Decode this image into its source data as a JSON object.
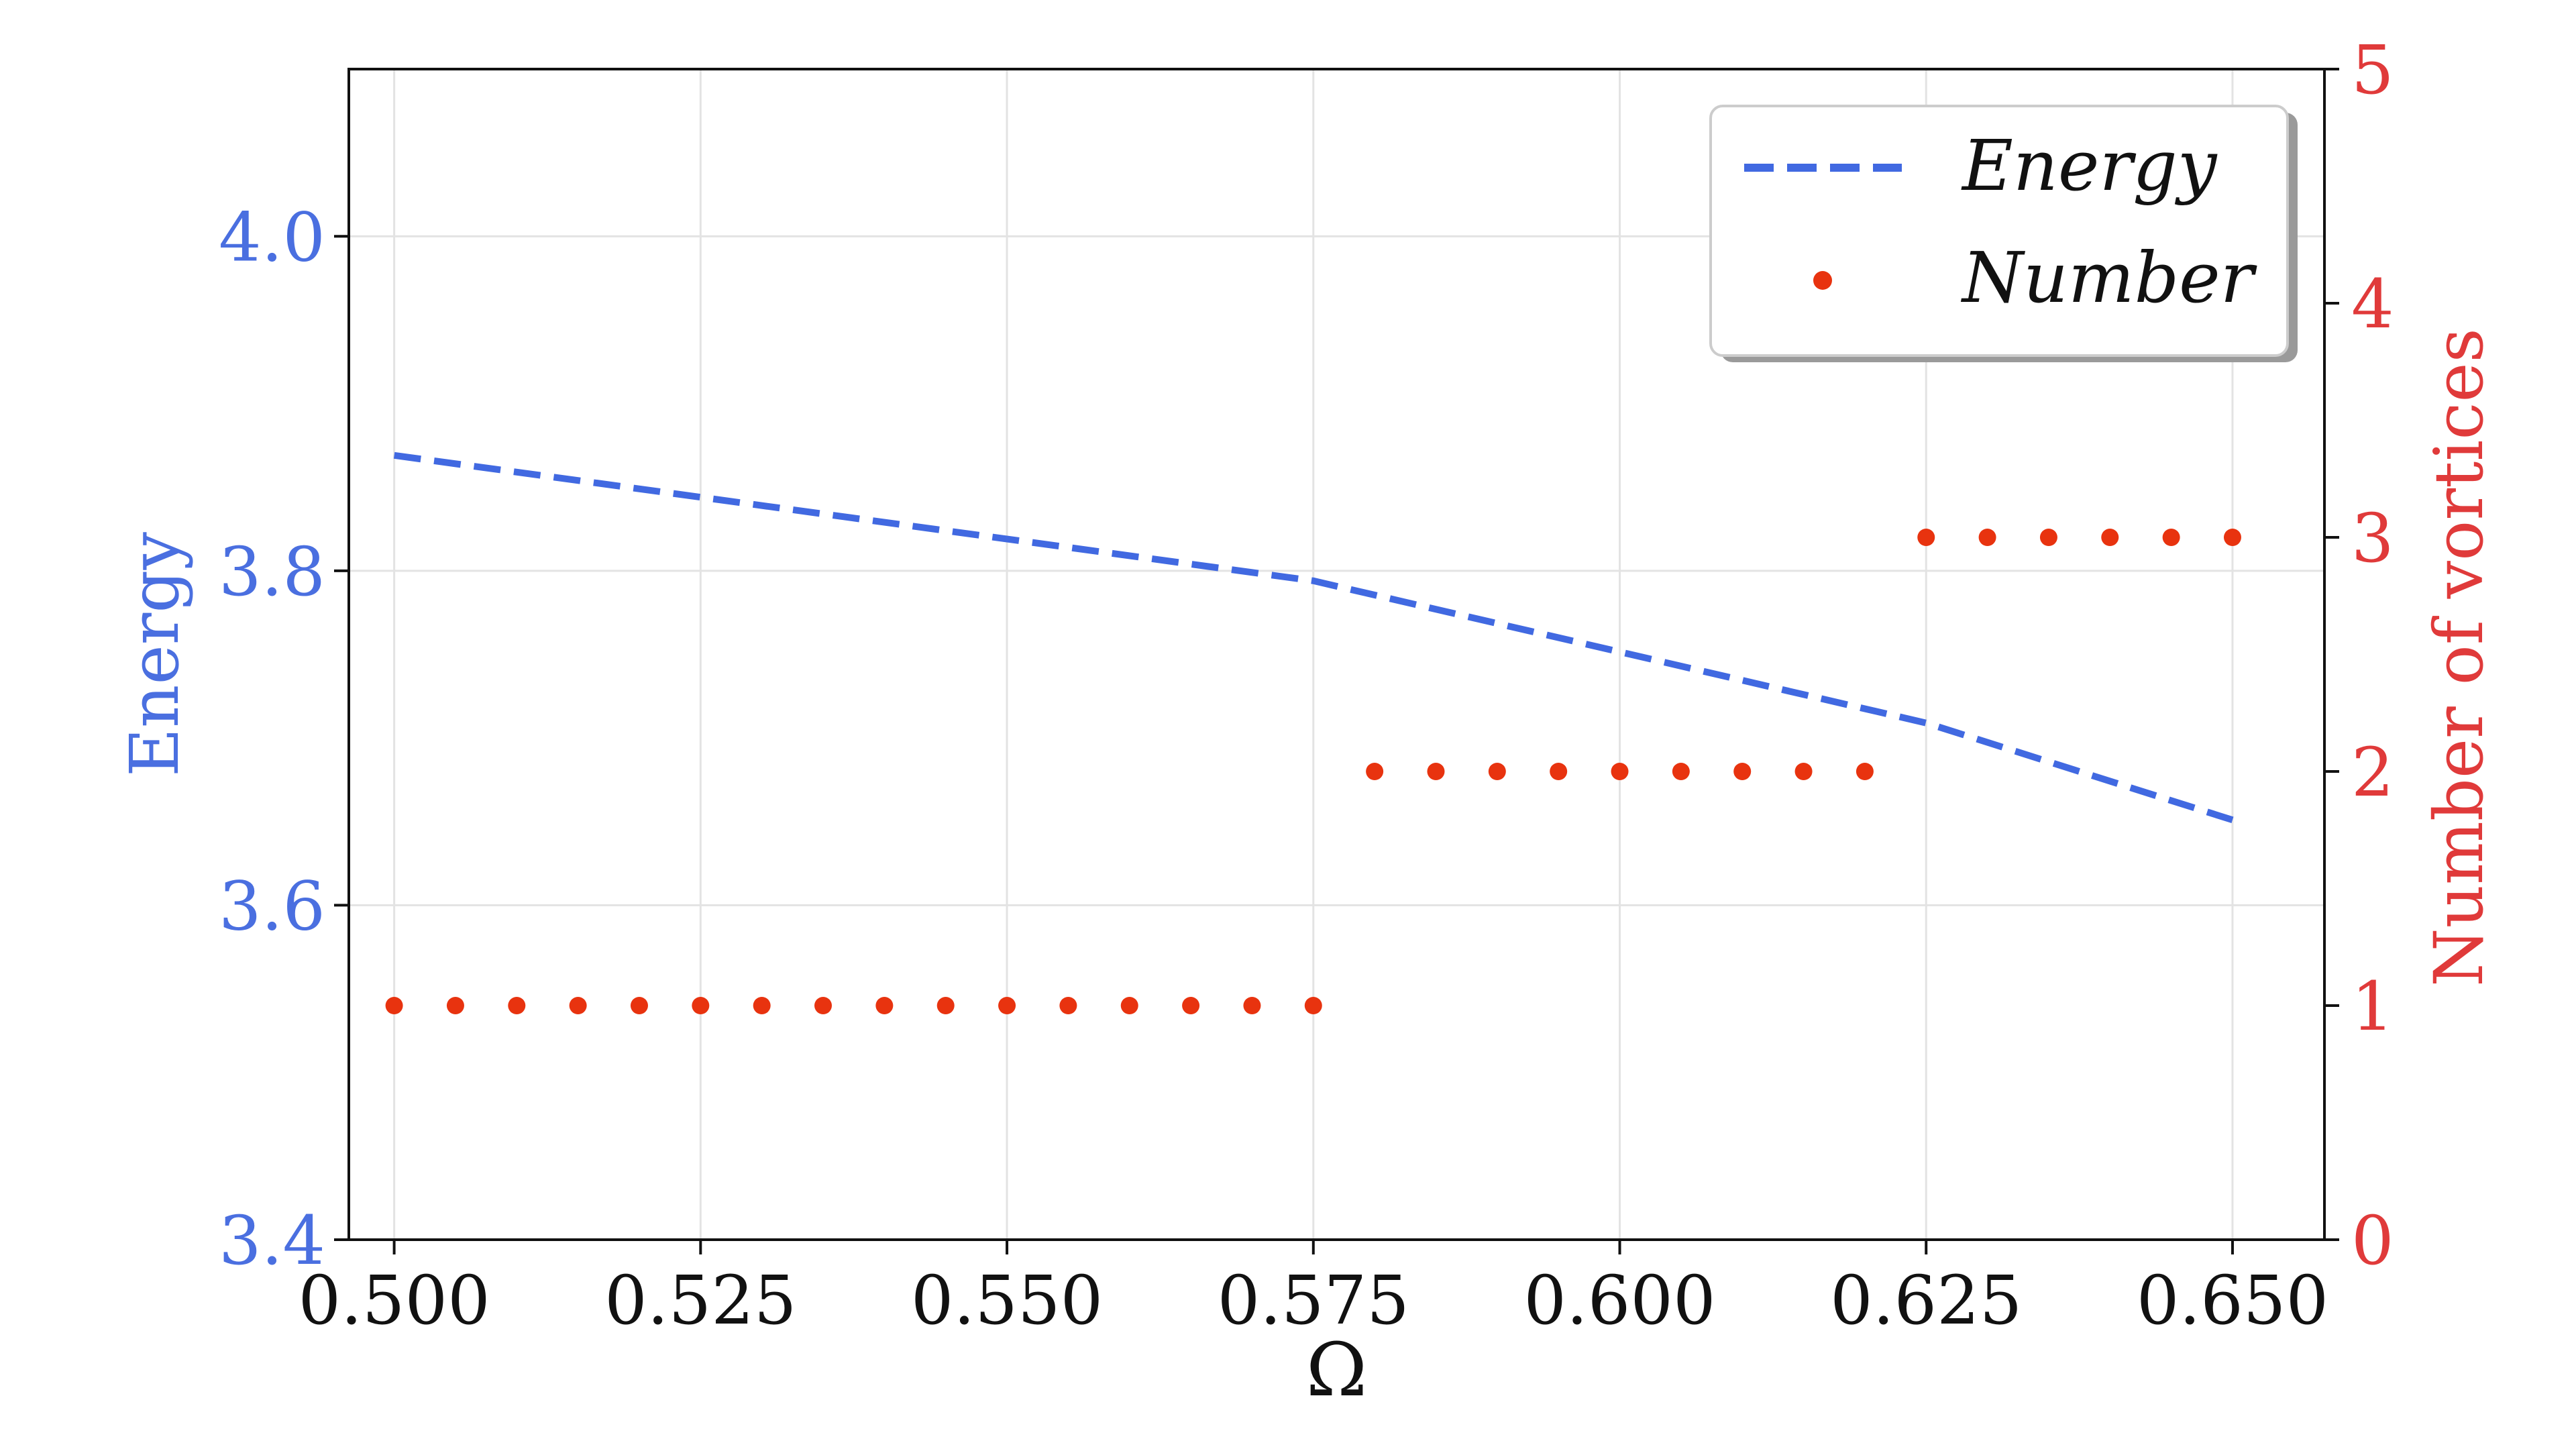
{
  "chart_data": {
    "type": "line",
    "xlabel": "Ω",
    "x_ticks": [
      "0.500",
      "0.525",
      "0.550",
      "0.575",
      "0.600",
      "0.625",
      "0.650"
    ],
    "xlim": [
      0.4963,
      0.6575
    ],
    "ylabel_left": "Energy",
    "ylim_left": [
      3.4,
      4.1
    ],
    "y_ticks_left": [
      "3.4",
      "3.6",
      "3.8",
      "4.0"
    ],
    "ylabel_right": "Number of vortices",
    "ylim_right": [
      0,
      5
    ],
    "y_ticks_right": [
      "0",
      "1",
      "2",
      "3",
      "4",
      "5"
    ],
    "grid": true,
    "legend_position": "top-right",
    "series": [
      {
        "name": "Energy",
        "axis": "left",
        "style": "dashed-line",
        "color": "#4169e1",
        "x": [
          0.5,
          0.575,
          0.625,
          0.65
        ],
        "values": [
          3.869,
          3.794,
          3.709,
          3.651
        ]
      },
      {
        "name": "Number",
        "axis": "right",
        "style": "dots",
        "color": "#e8330f",
        "x": [
          0.5,
          0.505,
          0.51,
          0.515,
          0.52,
          0.525,
          0.53,
          0.535,
          0.54,
          0.545,
          0.55,
          0.555,
          0.56,
          0.565,
          0.57,
          0.575,
          0.58,
          0.585,
          0.59,
          0.595,
          0.6,
          0.605,
          0.61,
          0.615,
          0.62,
          0.625,
          0.63,
          0.635,
          0.64,
          0.645,
          0.65
        ],
        "values": [
          1,
          1,
          1,
          1,
          1,
          1,
          1,
          1,
          1,
          1,
          1,
          1,
          1,
          1,
          1,
          1,
          2,
          2,
          2,
          2,
          2,
          2,
          2,
          2,
          2,
          3,
          3,
          3,
          3,
          3,
          3
        ]
      }
    ],
    "colors": {
      "left_axis": "#4a6fe0",
      "right_axis": "#e03a3a"
    }
  }
}
